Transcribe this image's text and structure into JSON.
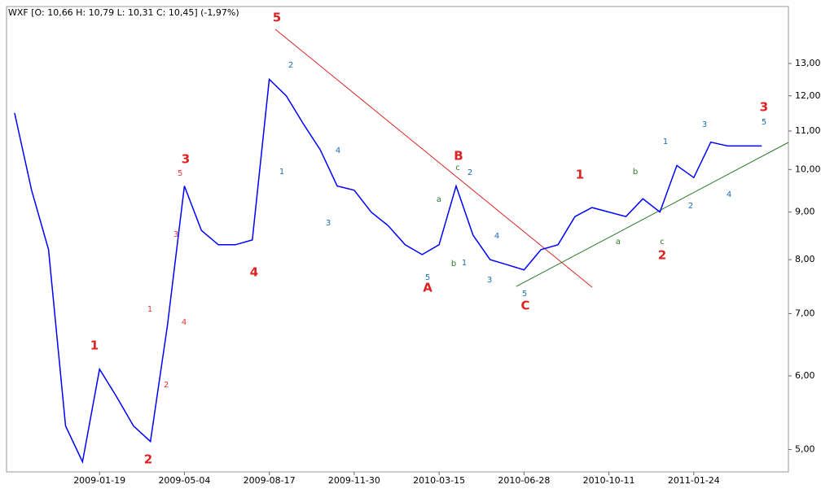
{
  "chart_data": {
    "type": "line",
    "title": "WXF [O: 10,66  H: 10,79  L: 10,31  C: 10,45]  (-1,97%)",
    "x": [
      "2008-10-06",
      "2008-10-27",
      "2008-11-17",
      "2008-12-08",
      "2008-12-29",
      "2009-01-19",
      "2009-02-09",
      "2009-03-02",
      "2009-03-23",
      "2009-04-13",
      "2009-05-04",
      "2009-05-25",
      "2009-06-15",
      "2009-07-06",
      "2009-07-27",
      "2009-08-17",
      "2009-09-07",
      "2009-09-28",
      "2009-10-19",
      "2009-11-09",
      "2009-11-30",
      "2009-12-21",
      "2010-01-11",
      "2010-02-01",
      "2010-02-22",
      "2010-03-15",
      "2010-04-05",
      "2010-04-26",
      "2010-05-17",
      "2010-06-07",
      "2010-06-28",
      "2010-07-19",
      "2010-08-09",
      "2010-08-30",
      "2010-09-20",
      "2010-10-11",
      "2010-11-01",
      "2010-11-22",
      "2010-12-13",
      "2011-01-03",
      "2011-01-24",
      "2011-02-14",
      "2011-03-07",
      "2011-03-28",
      "2011-04-18"
    ],
    "series": [
      {
        "name": "WXF",
        "color": "#0000ff",
        "values": [
          11.5,
          9.5,
          8.2,
          5.3,
          4.85,
          6.1,
          5.7,
          5.3,
          5.1,
          6.8,
          9.6,
          8.6,
          8.3,
          8.3,
          8.4,
          12.5,
          12.0,
          11.2,
          10.5,
          9.6,
          9.5,
          9.0,
          8.7,
          8.3,
          8.1,
          8.3,
          9.6,
          8.5,
          8.0,
          7.9,
          7.8,
          8.2,
          8.3,
          8.9,
          9.1,
          9.0,
          8.9,
          9.3,
          9.0,
          10.1,
          9.8,
          10.7,
          10.6,
          10.6,
          10.6
        ]
      }
    ],
    "xlim": [
      "2008-09-26",
      "2011-05-21"
    ],
    "xticks": [
      "2009-01-19",
      "2009-05-04",
      "2009-08-17",
      "2009-11-30",
      "2010-03-15",
      "2010-06-28",
      "2010-10-11",
      "2011-01-24"
    ],
    "ylim": [
      4.73,
      14.97
    ],
    "log_scale": true,
    "grid": false,
    "yticks": [
      {
        "value": 5,
        "label": "5,00"
      },
      {
        "value": 6,
        "label": "6,00"
      },
      {
        "value": 7,
        "label": "7,00"
      },
      {
        "value": 8,
        "label": "8,00"
      },
      {
        "value": 9,
        "label": "9,00"
      },
      {
        "value": 10,
        "label": "10,00"
      },
      {
        "value": 11,
        "label": "11,00"
      },
      {
        "value": 12,
        "label": "12,00"
      },
      {
        "value": 13,
        "label": "13,00"
      }
    ],
    "annotations": [
      "5",
      "3",
      "1",
      "2",
      "4",
      "B",
      "A",
      "C",
      "1",
      "2",
      "3",
      "5",
      "3",
      "1",
      "2",
      "4",
      "1",
      "2",
      "4",
      "3",
      "5",
      "2",
      "1",
      "3",
      "4",
      "5",
      "1",
      "3",
      "5",
      "2",
      "4",
      "a",
      "c",
      "b",
      "b",
      "a",
      "c"
    ]
  }
}
